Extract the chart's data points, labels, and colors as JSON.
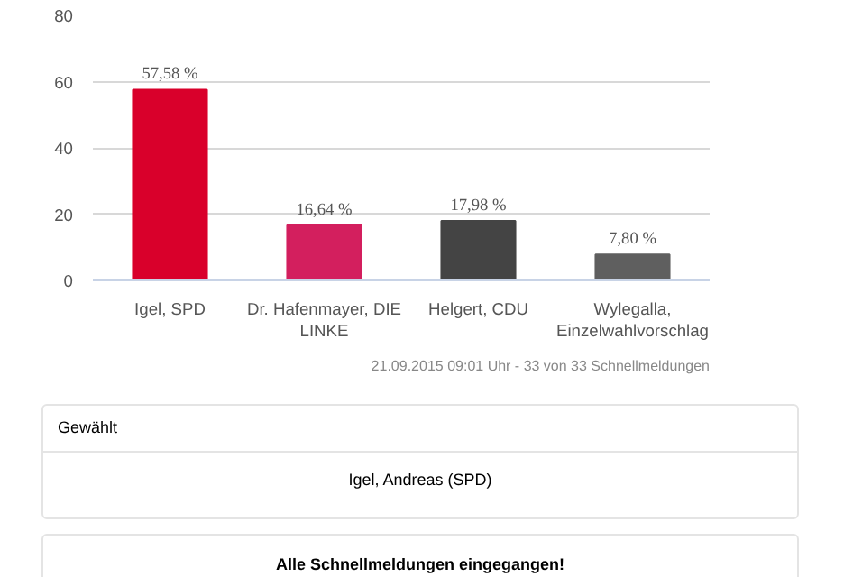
{
  "chart_data": {
    "type": "bar",
    "categories": [
      "Igel, SPD",
      "Dr. Hafenmayer, DIE LINKE",
      "Helgert, CDU",
      "Wylegalla, Einzelwahlvorschlag"
    ],
    "values": [
      57.58,
      16.64,
      17.98,
      7.8
    ],
    "colors": [
      "#d9002b",
      "#d31f5e",
      "#444444",
      "#5f5f5f"
    ],
    "value_labels": [
      "57,58 %",
      "16,64 %",
      "17,98 %",
      "7,80 %"
    ],
    "ylim": [
      0,
      80
    ],
    "yticks": [
      0,
      20,
      40,
      60,
      80
    ],
    "grid": "y",
    "annotations": [
      "21.09.2015 09:01 Uhr - 33 von 33 Schnellmeldungen",
      "Gewählt",
      "Igel, Andreas (SPD)",
      "Alle Schnellmeldungen eingegangen!"
    ]
  }
}
